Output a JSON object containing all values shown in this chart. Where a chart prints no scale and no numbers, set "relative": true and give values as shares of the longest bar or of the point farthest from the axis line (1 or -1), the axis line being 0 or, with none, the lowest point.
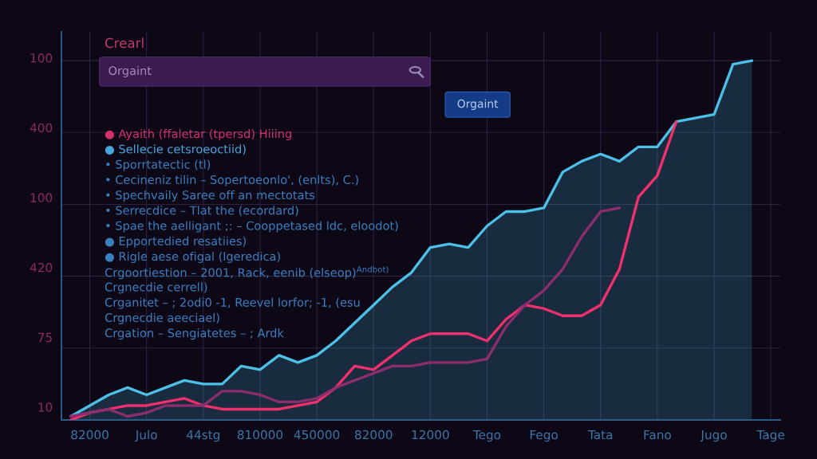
{
  "chart_data": {
    "type": "line",
    "title": "Crearl",
    "relative": true,
    "grid": true,
    "categories": [
      null,
      "82000",
      null,
      null,
      "Julo",
      null,
      null,
      "44stg",
      null,
      null,
      "810000",
      null,
      null,
      "450000",
      null,
      null,
      "82000",
      null,
      null,
      "12000",
      null,
      null,
      "Tego",
      null,
      null,
      "Fego",
      null,
      null,
      "Tata",
      null,
      null,
      "Fano",
      null,
      null,
      "Jugo",
      null,
      null,
      "Tage"
    ],
    "series": [
      {
        "type": "area",
        "color": "#4cc0e6",
        "values": [
          0.01,
          0.04,
          0.07,
          0.09,
          0.07,
          0.09,
          0.11,
          0.1,
          0.1,
          0.15,
          0.14,
          0.18,
          0.16,
          0.18,
          0.22,
          0.27,
          0.32,
          0.37,
          0.41,
          0.48,
          0.49,
          0.48,
          0.54,
          0.58,
          0.58,
          0.59,
          0.69,
          0.72,
          0.74,
          0.72,
          0.76,
          0.76,
          0.83,
          0.84,
          0.85,
          0.99,
          1.0,
          null
        ]
      },
      {
        "color": "#f2306c",
        "values": [
          0.0,
          0.02,
          0.03,
          0.04,
          0.04,
          0.05,
          0.06,
          0.04,
          0.03,
          0.03,
          0.03,
          0.03,
          0.04,
          0.05,
          0.09,
          0.15,
          0.14,
          0.18,
          0.22,
          0.24,
          0.24,
          0.24,
          0.22,
          0.28,
          0.32,
          0.31,
          0.29,
          0.29,
          0.32,
          0.42,
          0.62,
          0.68,
          0.83,
          null,
          null,
          null,
          null,
          null
        ]
      },
      {
        "color": "#8c2d6e",
        "values": [
          0.01,
          0.02,
          0.03,
          0.01,
          0.02,
          0.04,
          0.04,
          0.04,
          0.08,
          0.08,
          0.07,
          0.05,
          0.05,
          0.06,
          0.09,
          0.11,
          0.13,
          0.15,
          0.15,
          0.16,
          0.16,
          0.16,
          0.17,
          0.26,
          0.32,
          0.36,
          0.42,
          0.51,
          0.58,
          0.59,
          null,
          null,
          null,
          null,
          null,
          null,
          null,
          null
        ]
      }
    ],
    "annotations": [
      "Orgaint",
      "Orgaint",
      "100",
      "400",
      "100",
      "420",
      "75",
      "10",
      "● Ayaith (ffaletar (tpersd) Hiiing",
      "● Sellecie cetsroeoctiid)",
      "• Sporrtatectic (tl)",
      "• Cecineniz tilin – Sopertoeonlo', (enlts), C.)",
      "• Spechvaily Saree off an mectotats",
      "• Serrecdice – Tlat the (ecordard)",
      "• Spae the aelligant ;: – Cooppetased ldc, eloodot)",
      "● Epportedied resatiies)",
      "● Rigle aese ofigal (lgeredica)",
      "Crgoortiestion – 2001, Rack, eenib (elseop)$^{Andbot)}$",
      "Crgnecdie cerrell)",
      "Crganitet – ; 2odi0 -1, Reevel lorfor; -1, (esu",
      "Crgnecdie aeeciael)",
      "Crgation – Sengiatetes – ; Ardk"
    ]
  }
}
